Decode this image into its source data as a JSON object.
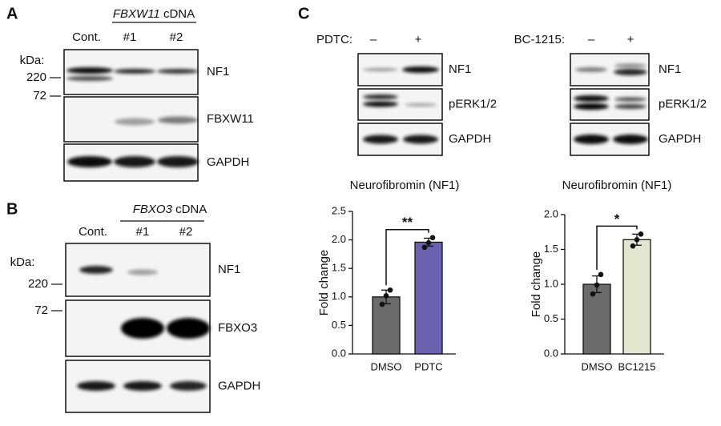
{
  "panels": [
    {
      "letter": "A",
      "gene": "FBXW11",
      "gene_suffix": "cDNA",
      "lanes": [
        "Cont.",
        "#1",
        "#2"
      ],
      "kda_label": "kDa:",
      "markers": [
        "220",
        "72"
      ],
      "blots": [
        "NF1",
        "FBXW11",
        "GAPDH"
      ]
    },
    {
      "letter": "B",
      "gene": "FBXO3",
      "gene_suffix": "cDNA",
      "lanes": [
        "Cont.",
        "#1",
        "#2"
      ],
      "kda_label": "kDa:",
      "markers": [
        "220",
        "72"
      ],
      "blots": [
        "NF1",
        "FBXO3",
        "GAPDH"
      ]
    },
    {
      "letter": "C",
      "treatments": [
        {
          "name": "PDTC:",
          "lanes": [
            "–",
            "+"
          ],
          "blots": [
            "NF1",
            "pERK1/2",
            "GAPDH"
          ]
        },
        {
          "name": "BC-1215:",
          "lanes": [
            "–",
            "+"
          ],
          "blots": [
            "NF1",
            "pERK1/2",
            "GAPDH"
          ]
        }
      ]
    }
  ],
  "chart_data": [
    {
      "type": "bar",
      "title": "Neurofibromin (NF1)",
      "y_label": "Fold change",
      "categories": [
        "DMSO",
        "PDTC"
      ],
      "values": [
        1.0,
        1.96
      ],
      "errors": [
        0.12,
        0.07
      ],
      "points": [
        [
          0.87,
          1.02,
          1.12
        ],
        [
          1.87,
          1.95,
          2.04
        ]
      ],
      "colors": [
        "#6b6b6b",
        "#6a62ae"
      ],
      "annotation": "**",
      "ylim": [
        0,
        2.5
      ],
      "yticks": [
        {
          "value": 0,
          "label": "0.0"
        },
        0.5,
        {
          "value": 1,
          "label": "1.0"
        },
        1.5,
        {
          "value": 2,
          "label": "2.0"
        },
        2.5
      ]
    },
    {
      "type": "bar",
      "title": "Neurofibromin (NF1)",
      "y_label": "Fold change",
      "categories": [
        "DMSO",
        "BC1215"
      ],
      "values": [
        1.0,
        1.64
      ],
      "errors": [
        0.12,
        0.08
      ],
      "points": [
        [
          0.86,
          0.99,
          1.14
        ],
        [
          1.55,
          1.64,
          1.72
        ]
      ],
      "colors": [
        "#6b6b6b",
        "#e4e7cf"
      ],
      "annotation": "*",
      "ylim": [
        0,
        2
      ],
      "yticks": [
        {
          "value": 0,
          "label": "0.0"
        },
        0.5,
        {
          "value": 1,
          "label": "1.0"
        },
        1.5,
        {
          "value": 2,
          "label": "2.0"
        }
      ]
    }
  ]
}
